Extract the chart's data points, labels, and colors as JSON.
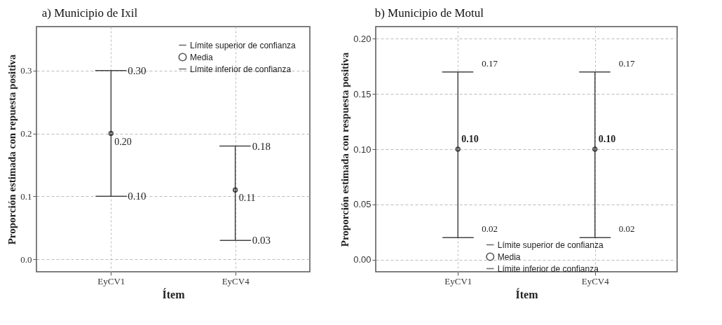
{
  "chart_data": [
    {
      "type": "scatter",
      "title": "a) Municipio de Ixil",
      "xlabel": "Ítem",
      "ylabel": "Proporción estimada con repuesta positiva",
      "categories": [
        "EyCV1",
        "EyCV4"
      ],
      "ylim": [
        -0.02,
        0.37
      ],
      "yticks": [
        {
          "value": 0,
          "label": "0.0"
        },
        0.1,
        0.2,
        0.3
      ],
      "grid": true,
      "legend": "top right",
      "marker": "circle",
      "series": [
        {
          "name": "Media",
          "color": "#111111",
          "values": [
            0.2,
            0.11
          ],
          "value_labels": [
            "0.20",
            "0.11"
          ],
          "errors": [
            [
              0.1,
              0.3
            ],
            [
              0.03,
              0.18
            ]
          ]
        }
      ],
      "annotations": [
        "Límite superior de confianza",
        "Límite inferior de confianza",
        {
          "text": "0.30",
          "x": "EyCV1",
          "y": 0.3
        },
        {
          "text": "0.10",
          "x": "EyCV1",
          "y": 0.1
        },
        {
          "text": "0.18",
          "x": "EyCV4",
          "y": 0.18
        },
        {
          "text": "0.03",
          "x": "EyCV4",
          "y": 0.03
        }
      ]
    },
    {
      "type": "scatter",
      "title": "b) Municipio de Motul",
      "xlabel": "Ítem",
      "ylabel": "Proporción estimada con respuesta positiva",
      "categories": [
        "EyCV1",
        "EyCV4"
      ],
      "ylim": [
        -0.011,
        0.211
      ],
      "yticks": [
        {
          "value": 0,
          "label": "0.00"
        },
        {
          "value": 0.05,
          "label": "0.05"
        },
        {
          "value": 0.1,
          "label": "0.10"
        },
        {
          "value": 0.15,
          "label": "0.15"
        },
        {
          "value": 0.2,
          "label": "0.20"
        }
      ],
      "grid": true,
      "legend": "bottom",
      "marker": "circle",
      "series": [
        {
          "name": "Media",
          "color": "#111111",
          "values": [
            0.1,
            0.1
          ],
          "value_labels": [
            "0.10",
            "0.10"
          ],
          "errors": [
            [
              0.02,
              0.17
            ],
            [
              0.02,
              0.17
            ]
          ]
        }
      ],
      "annotations": [
        "Límite superior de confianza",
        "Límite inferior de confianza",
        {
          "text": "0.17",
          "x": "EyCV1",
          "y": 0.17
        },
        {
          "text": "0.02",
          "x": "EyCV1",
          "y": 0.02
        },
        {
          "text": "0.17",
          "x": "EyCV4",
          "y": 0.17
        },
        {
          "text": "0.02",
          "x": "EyCV4",
          "y": 0.02
        }
      ]
    }
  ]
}
